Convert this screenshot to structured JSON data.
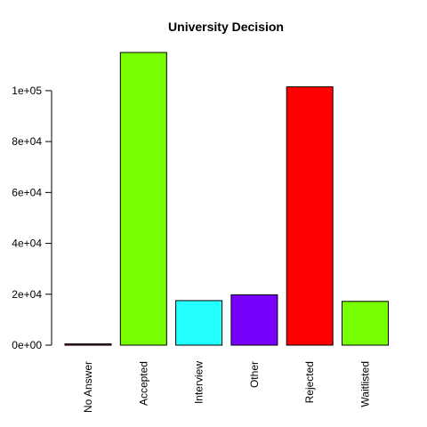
{
  "chart_data": {
    "type": "bar",
    "title": "University Decision",
    "xlabel": "",
    "ylabel": "",
    "categories": [
      "No Answer",
      "Accepted",
      "Interview",
      "Other",
      "Rejected",
      "Waitlisted"
    ],
    "values": [
      500,
      115000,
      17500,
      19800,
      101500,
      17200
    ],
    "colors": [
      "#7f1f1f",
      "#77ff00",
      "#22ffff",
      "#7700ff",
      "#ff0000",
      "#77ff00"
    ],
    "ylim": [
      0,
      115000
    ],
    "yticks": [
      0,
      20000,
      40000,
      60000,
      80000,
      100000
    ],
    "ytick_labels": [
      "0e+00",
      "2e+04",
      "4e+04",
      "6e+04",
      "8e+04",
      "1e+05"
    ],
    "grid": false,
    "legend": "none"
  }
}
